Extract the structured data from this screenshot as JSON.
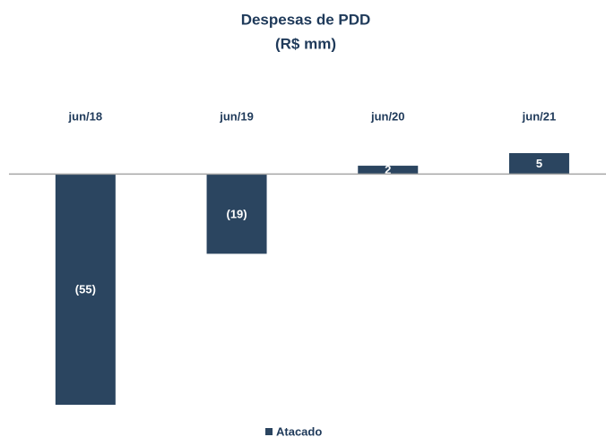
{
  "chart_data": {
    "type": "bar",
    "title": "Despesas de PDD",
    "subtitle": "(R$ mm)",
    "categories": [
      "jun/18",
      "jun/19",
      "jun/20",
      "jun/21"
    ],
    "series": [
      {
        "name": "Atacado",
        "color": "#2b4560",
        "values": [
          -55,
          -19,
          2,
          5
        ],
        "value_labels": [
          "(55)",
          "(19)",
          "2",
          "5"
        ]
      }
    ],
    "ylim": [
      -55,
      5
    ],
    "legend": "bottom"
  }
}
